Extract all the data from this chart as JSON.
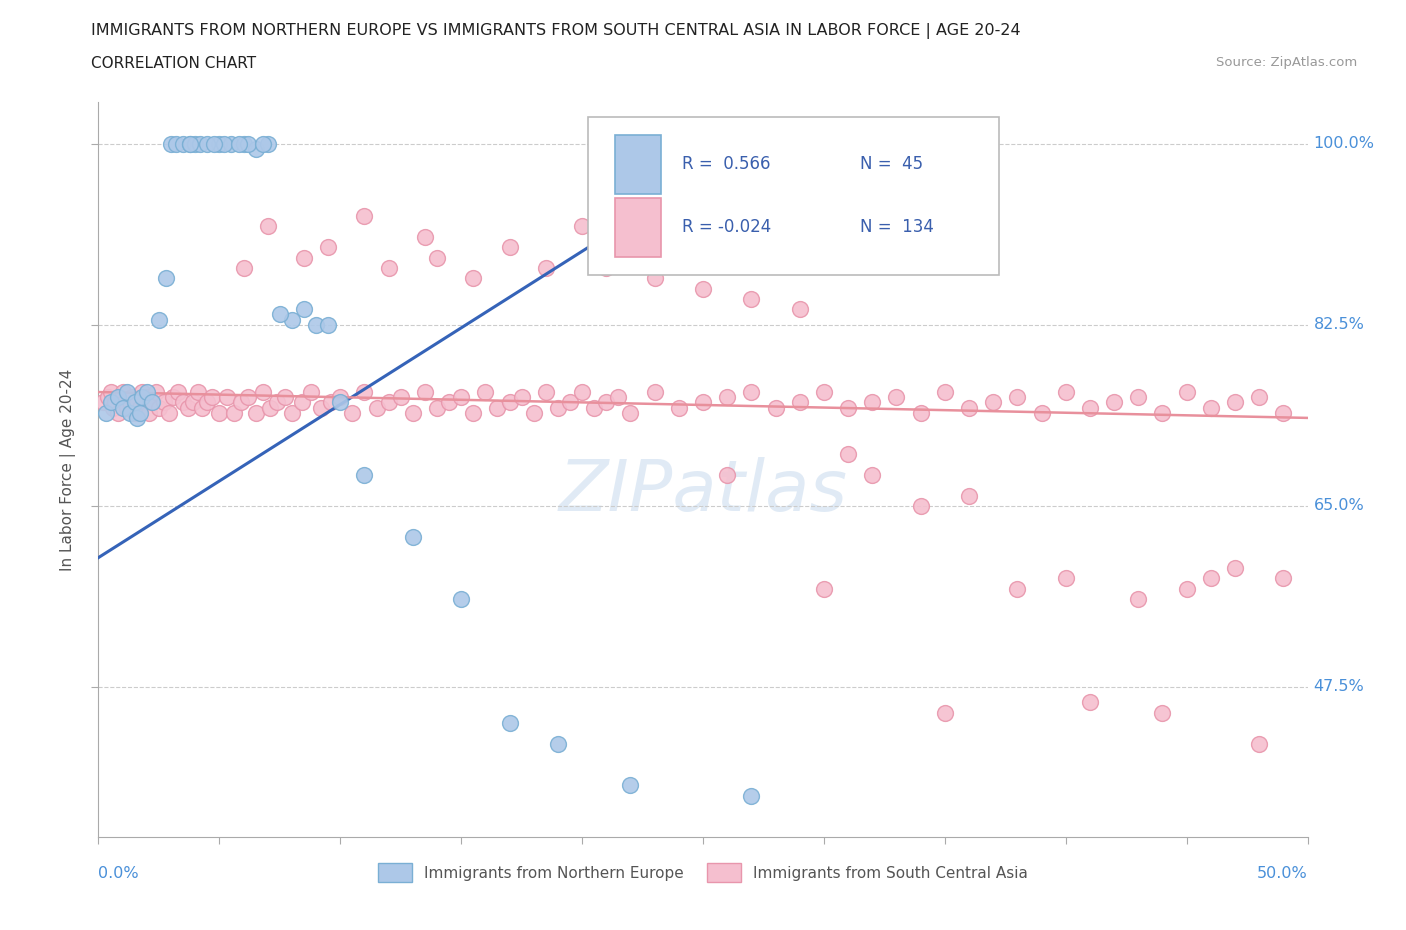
{
  "title": "IMMIGRANTS FROM NORTHERN EUROPE VS IMMIGRANTS FROM SOUTH CENTRAL ASIA IN LABOR FORCE | AGE 20-24",
  "subtitle": "CORRELATION CHART",
  "source": "Source: ZipAtlas.com",
  "ylabel_label": "In Labor Force | Age 20-24",
  "xmin": 0.0,
  "xmax": 50.0,
  "ymin": 33.0,
  "ymax": 104.0,
  "ylabel_ticks": [
    47.5,
    65.0,
    82.5,
    100.0
  ],
  "blue_R": 0.566,
  "blue_N": 45,
  "pink_R": -0.024,
  "pink_N": 134,
  "blue_color": "#adc8e8",
  "blue_edge": "#7aafd4",
  "pink_color": "#f5bfcf",
  "pink_edge": "#e896ac",
  "blue_line_color": "#3563b8",
  "pink_line_color": "#e8909c",
  "watermark_color": "#ccddef",
  "legend_text_color": "#3a5fad",
  "blue_scatter_x": [
    0.3,
    0.5,
    0.8,
    1.0,
    1.2,
    1.3,
    1.5,
    1.6,
    1.7,
    1.8,
    2.0,
    2.2,
    2.5,
    2.8,
    3.0,
    3.2,
    3.5,
    3.8,
    4.0,
    4.2,
    5.0,
    5.5,
    6.0,
    6.5,
    7.0,
    8.0,
    9.0,
    10.0,
    11.0,
    13.0,
    15.0,
    17.0,
    19.0,
    22.0,
    27.0,
    4.5,
    5.2,
    6.2,
    7.5,
    8.5,
    3.8,
    4.8,
    5.8,
    9.5,
    6.8
  ],
  "blue_scatter_y": [
    74.0,
    75.0,
    75.5,
    74.5,
    76.0,
    74.0,
    75.0,
    73.5,
    74.0,
    75.5,
    76.0,
    75.0,
    83.0,
    87.0,
    100.0,
    100.0,
    100.0,
    100.0,
    100.0,
    100.0,
    100.0,
    100.0,
    100.0,
    99.5,
    100.0,
    83.0,
    82.5,
    75.0,
    68.0,
    62.0,
    56.0,
    44.0,
    42.0,
    38.0,
    37.0,
    100.0,
    100.0,
    100.0,
    83.5,
    84.0,
    100.0,
    100.0,
    100.0,
    82.5,
    100.0
  ],
  "pink_scatter_x": [
    0.2,
    0.4,
    0.5,
    0.6,
    0.7,
    0.8,
    0.9,
    1.0,
    1.1,
    1.2,
    1.3,
    1.4,
    1.5,
    1.6,
    1.7,
    1.8,
    1.9,
    2.0,
    2.1,
    2.2,
    2.4,
    2.5,
    2.7,
    2.9,
    3.1,
    3.3,
    3.5,
    3.7,
    3.9,
    4.1,
    4.3,
    4.5,
    4.7,
    5.0,
    5.3,
    5.6,
    5.9,
    6.2,
    6.5,
    6.8,
    7.1,
    7.4,
    7.7,
    8.0,
    8.4,
    8.8,
    9.2,
    9.6,
    10.0,
    10.5,
    11.0,
    11.5,
    12.0,
    12.5,
    13.0,
    13.5,
    14.0,
    14.5,
    15.0,
    15.5,
    16.0,
    16.5,
    17.0,
    17.5,
    18.0,
    18.5,
    19.0,
    19.5,
    20.0,
    20.5,
    21.0,
    21.5,
    22.0,
    23.0,
    24.0,
    25.0,
    26.0,
    27.0,
    28.0,
    29.0,
    30.0,
    31.0,
    32.0,
    33.0,
    34.0,
    35.0,
    36.0,
    37.0,
    38.0,
    39.0,
    40.0,
    41.0,
    42.0,
    43.0,
    44.0,
    45.0,
    46.0,
    47.0,
    48.0,
    49.0,
    6.0,
    7.0,
    8.5,
    9.5,
    11.0,
    12.0,
    13.5,
    14.0,
    15.5,
    17.0,
    18.5,
    20.0,
    21.0,
    23.0,
    25.0,
    27.0,
    29.0,
    31.0,
    32.0,
    34.0,
    36.0,
    38.0,
    40.0,
    43.0,
    45.0,
    47.0,
    49.0,
    35.0,
    41.0,
    44.0,
    48.0,
    26.0,
    30.0,
    46.0
  ],
  "pink_scatter_y": [
    75.0,
    75.5,
    76.0,
    74.5,
    75.0,
    74.0,
    75.5,
    76.0,
    75.0,
    74.5,
    75.0,
    75.5,
    74.0,
    75.0,
    74.5,
    76.0,
    75.0,
    75.5,
    74.0,
    75.0,
    76.0,
    74.5,
    75.0,
    74.0,
    75.5,
    76.0,
    75.0,
    74.5,
    75.0,
    76.0,
    74.5,
    75.0,
    75.5,
    74.0,
    75.5,
    74.0,
    75.0,
    75.5,
    74.0,
    76.0,
    74.5,
    75.0,
    75.5,
    74.0,
    75.0,
    76.0,
    74.5,
    75.0,
    75.5,
    74.0,
    76.0,
    74.5,
    75.0,
    75.5,
    74.0,
    76.0,
    74.5,
    75.0,
    75.5,
    74.0,
    76.0,
    74.5,
    75.0,
    75.5,
    74.0,
    76.0,
    74.5,
    75.0,
    76.0,
    74.5,
    75.0,
    75.5,
    74.0,
    76.0,
    74.5,
    75.0,
    75.5,
    76.0,
    74.5,
    75.0,
    76.0,
    74.5,
    75.0,
    75.5,
    74.0,
    76.0,
    74.5,
    75.0,
    75.5,
    74.0,
    76.0,
    74.5,
    75.0,
    75.5,
    74.0,
    76.0,
    74.5,
    75.0,
    75.5,
    74.0,
    88.0,
    92.0,
    89.0,
    90.0,
    93.0,
    88.0,
    91.0,
    89.0,
    87.0,
    90.0,
    88.0,
    92.0,
    88.0,
    87.0,
    86.0,
    85.0,
    84.0,
    70.0,
    68.0,
    65.0,
    66.0,
    57.0,
    58.0,
    56.0,
    57.0,
    59.0,
    58.0,
    45.0,
    46.0,
    45.0,
    42.0,
    68.0,
    57.0,
    58.0
  ]
}
